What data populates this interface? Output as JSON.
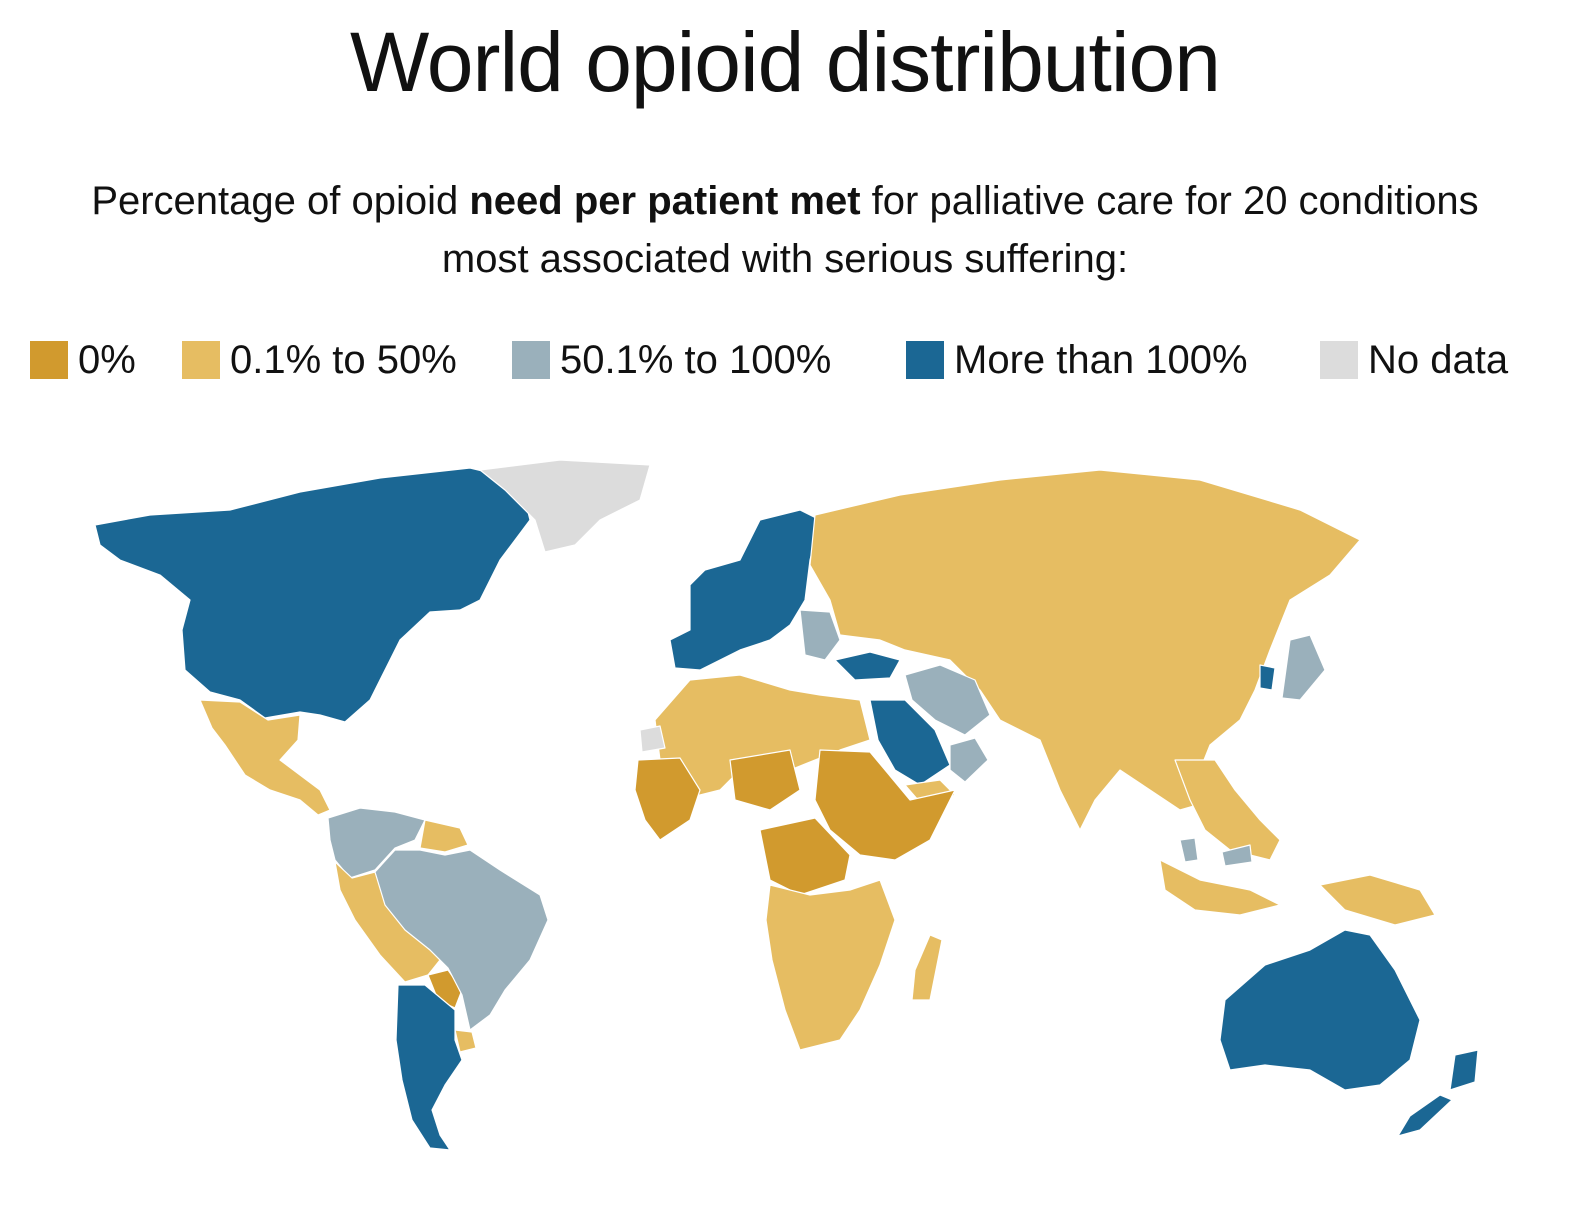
{
  "title": "World opioid distribution",
  "subtitle": {
    "before": "Percentage of opioid ",
    "bold": "need per patient met",
    "after": " for palliative care for 20 conditions most associated with serious suffering:"
  },
  "legend": [
    {
      "label": "0%",
      "color": "#d19a2e",
      "category": "zero"
    },
    {
      "label": "0.1% to 50%",
      "color": "#e6bd62",
      "category": "low"
    },
    {
      "label": "50.1% to 100%",
      "color": "#9ab0bb",
      "category": "mid"
    },
    {
      "label": "More than 100%",
      "color": "#1b6794",
      "category": "high"
    },
    {
      "label": "No data",
      "color": "#dcdcdc",
      "category": "nodata"
    }
  ],
  "map_regions": [
    {
      "region": "north-america",
      "category": "high"
    },
    {
      "region": "greenland",
      "category": "nodata"
    },
    {
      "region": "mexico-central-america",
      "category": "low"
    },
    {
      "region": "colombia-venezuela-ecuador",
      "category": "mid"
    },
    {
      "region": "guianas",
      "category": "low"
    },
    {
      "region": "peru-bolivia",
      "category": "low"
    },
    {
      "region": "paraguay",
      "category": "zero"
    },
    {
      "region": "brazil",
      "category": "mid"
    },
    {
      "region": "argentina-chile",
      "category": "high"
    },
    {
      "region": "uruguay",
      "category": "low"
    },
    {
      "region": "western-europe",
      "category": "high"
    },
    {
      "region": "eastern-europe",
      "category": "mid"
    },
    {
      "region": "russia-central-asia",
      "category": "low"
    },
    {
      "region": "turkey",
      "category": "high"
    },
    {
      "region": "iran",
      "category": "mid"
    },
    {
      "region": "saudi-arabia",
      "category": "high"
    },
    {
      "region": "oman-uae",
      "category": "mid"
    },
    {
      "region": "yemen",
      "category": "low"
    },
    {
      "region": "south-east-asia",
      "category": "low"
    },
    {
      "region": "south-korea",
      "category": "high"
    },
    {
      "region": "japan",
      "category": "mid"
    },
    {
      "region": "north-africa",
      "category": "low"
    },
    {
      "region": "western-sahara",
      "category": "nodata"
    },
    {
      "region": "west-africa",
      "category": "zero"
    },
    {
      "region": "sahel",
      "category": "zero"
    },
    {
      "region": "sudan-ethiopia-somalia",
      "category": "zero"
    },
    {
      "region": "central-africa",
      "category": "zero"
    },
    {
      "region": "southern-africa",
      "category": "low"
    },
    {
      "region": "madagascar",
      "category": "low"
    },
    {
      "region": "indonesia-png",
      "category": "low"
    },
    {
      "region": "malaysia",
      "category": "mid"
    },
    {
      "region": "australia",
      "category": "high"
    },
    {
      "region": "new-zealand",
      "category": "high"
    }
  ]
}
